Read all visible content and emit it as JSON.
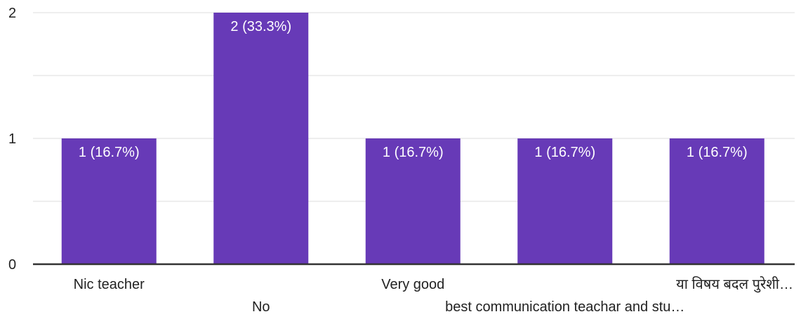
{
  "chart_data": {
    "type": "bar",
    "categories": [
      "Nic teacher",
      "No",
      "Very good",
      "best communication teachar and stu…",
      "या विषय बदल पुरेशी…"
    ],
    "values": [
      1,
      2,
      1,
      1,
      1
    ],
    "data_labels": [
      "1 (16.7%)",
      "2 (33.3%)",
      "1 (16.7%)",
      "1 (16.7%)",
      "1 (16.7%)"
    ],
    "ylim": [
      0,
      2
    ],
    "y_ticks": [
      "0",
      "1",
      "2"
    ],
    "grid": true,
    "legend": "none",
    "bar_color": "#673ab7",
    "grid_color": "#e8e8e8",
    "axis_color": "#333333"
  }
}
